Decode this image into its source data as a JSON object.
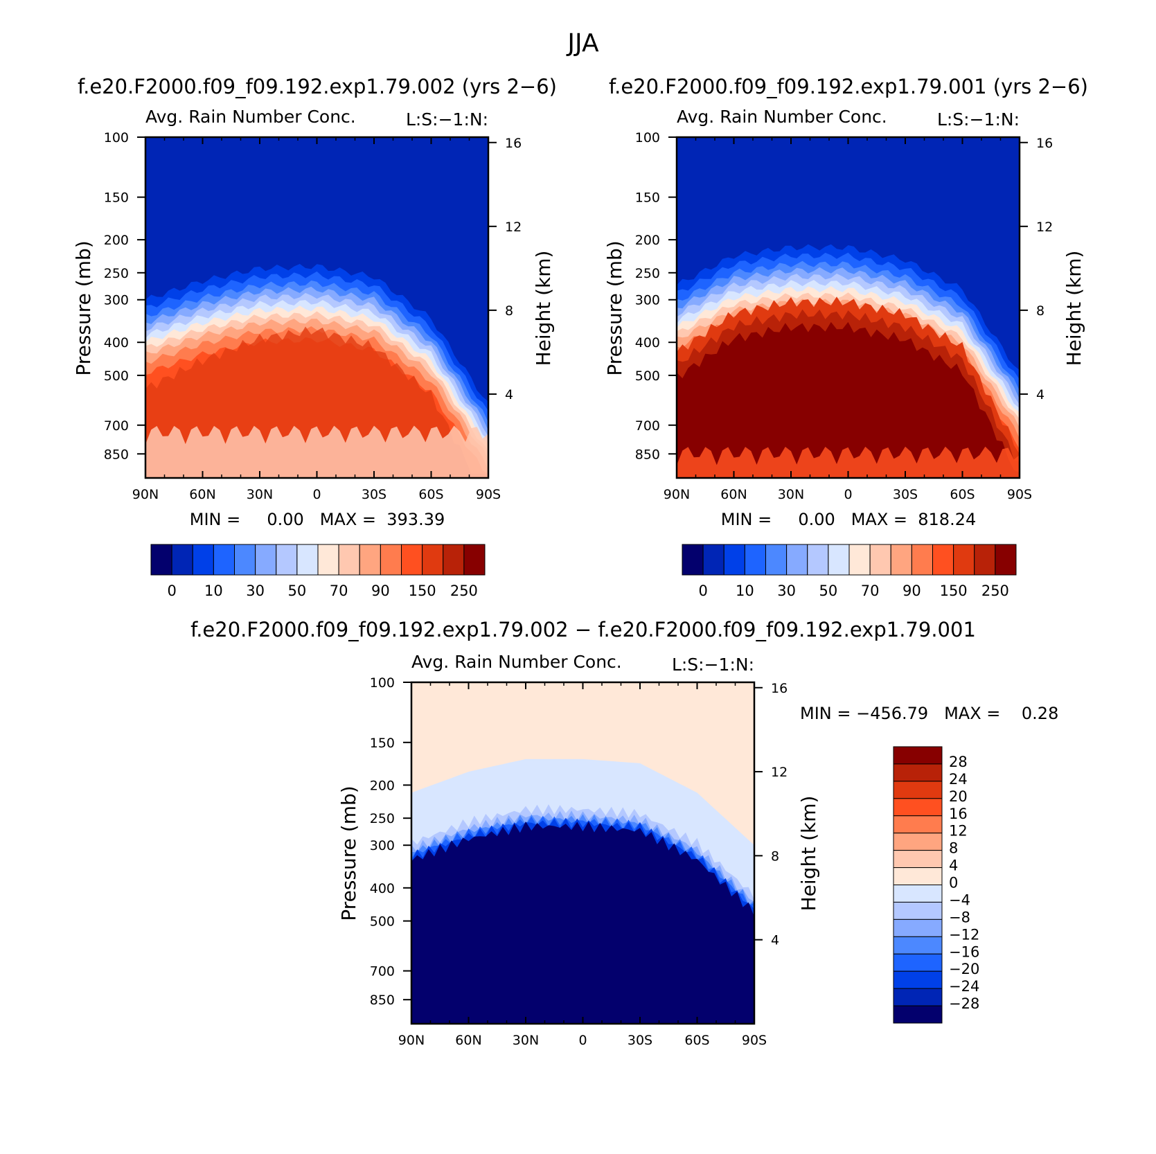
{
  "figure": {
    "title": "JJA"
  },
  "chart_data": [
    {
      "id": "exp002",
      "type": "heatmap",
      "case_title": "f.e20.F2000.f09_f09.192.exp1.79.002 (yrs 2−6)",
      "subtitle_left": "Avg. Rain Number Conc.",
      "subtitle_right": "L:S:−1:N:",
      "ylabel": "Pressure (mb)",
      "y2label": "Height (km)",
      "xticks": [
        "90N",
        "60N",
        "30N",
        "0",
        "30S",
        "60S",
        "90S"
      ],
      "yticks": [
        "100",
        "150",
        "200",
        "250",
        "300",
        "400",
        "500",
        "700",
        "850"
      ],
      "y2ticks": [
        "4",
        "8",
        "12",
        "16"
      ],
      "stats": "MIN =     0.00   MAX =  393.39",
      "min": 0.0,
      "max": 393.39,
      "colorbar_labels": [
        "0",
        "10",
        "30",
        "50",
        "70",
        "90",
        "150",
        "250"
      ],
      "colors": [
        "#03006d",
        "#0025b5",
        "#0040e8",
        "#1e64ff",
        "#4c88ff",
        "#86aaff",
        "#b4c8ff",
        "#d8e6ff",
        "#ffe8d8",
        "#ffc8b0",
        "#ffa580",
        "#ff7c4e",
        "#ff5020",
        "#e03a10",
        "#b82208",
        "#870000"
      ],
      "profile": [
        {
          "lat": "90N",
          "top_km": 8.5,
          "core": 0.45
        },
        {
          "lat": "60N",
          "top_km": 9.4,
          "core": 0.6
        },
        {
          "lat": "30N",
          "top_km": 10.0,
          "core": 0.75
        },
        {
          "lat": "0",
          "top_km": 10.1,
          "core": 0.85
        },
        {
          "lat": "30S",
          "top_km": 9.6,
          "core": 0.75
        },
        {
          "lat": "60S",
          "top_km": 7.6,
          "core": 0.65
        },
        {
          "lat": "90S",
          "top_km": 3.5,
          "core": 0.3
        }
      ]
    },
    {
      "id": "exp001",
      "type": "heatmap",
      "case_title": "f.e20.F2000.f09_f09.192.exp1.79.001 (yrs 2−6)",
      "subtitle_left": "Avg. Rain Number Conc.",
      "subtitle_right": "L:S:−1:N:",
      "ylabel": "Pressure (mb)",
      "y2label": "Height (km)",
      "xticks": [
        "90N",
        "60N",
        "30N",
        "0",
        "30S",
        "60S",
        "90S"
      ],
      "yticks": [
        "100",
        "150",
        "200",
        "250",
        "300",
        "400",
        "500",
        "700",
        "850"
      ],
      "y2ticks": [
        "4",
        "8",
        "12",
        "16"
      ],
      "stats": "MIN =     0.00   MAX =  818.24",
      "min": 0.0,
      "max": 818.24,
      "colorbar_labels": [
        "0",
        "10",
        "30",
        "50",
        "70",
        "90",
        "150",
        "250"
      ],
      "colors": [
        "#03006d",
        "#0025b5",
        "#0040e8",
        "#1e64ff",
        "#4c88ff",
        "#86aaff",
        "#b4c8ff",
        "#d8e6ff",
        "#ffe8d8",
        "#ffc8b0",
        "#ffa580",
        "#ff7c4e",
        "#ff5020",
        "#e03a10",
        "#b82208",
        "#870000"
      ],
      "profile": [
        {
          "lat": "90N",
          "top_km": 9.2,
          "core": 0.8
        },
        {
          "lat": "60N",
          "top_km": 10.6,
          "core": 0.95
        },
        {
          "lat": "30N",
          "top_km": 11.0,
          "core": 1.0
        },
        {
          "lat": "0",
          "top_km": 11.0,
          "core": 1.0
        },
        {
          "lat": "30S",
          "top_km": 10.4,
          "core": 1.0
        },
        {
          "lat": "60S",
          "top_km": 9.0,
          "core": 0.95
        },
        {
          "lat": "90S",
          "top_km": 5.0,
          "core": 0.6
        }
      ]
    },
    {
      "id": "difference",
      "type": "heatmap",
      "case_title": "f.e20.F2000.f09_f09.192.exp1.79.002 − f.e20.F2000.f09_f09.192.exp1.79.001",
      "subtitle_left": "Avg. Rain Number Conc.",
      "subtitle_right": "L:S:−1:N:",
      "ylabel": "Pressure (mb)",
      "y2label": "Height (km)",
      "xticks": [
        "90N",
        "60N",
        "30N",
        "0",
        "30S",
        "60S",
        "90S"
      ],
      "yticks": [
        "100",
        "150",
        "200",
        "250",
        "300",
        "400",
        "500",
        "700",
        "850"
      ],
      "y2ticks": [
        "4",
        "8",
        "12",
        "16"
      ],
      "stats": "MIN = −456.79   MAX =    0.28",
      "min": -456.79,
      "max": 0.28,
      "colorbar_labels": [
        "28",
        "24",
        "20",
        "16",
        "12",
        "8",
        "4",
        "0",
        "−4",
        "−8",
        "−12",
        "−16",
        "−20",
        "−24",
        "−28"
      ],
      "colors_top_to_bottom": [
        "#870000",
        "#b82208",
        "#e03a10",
        "#ff5020",
        "#ff7c4e",
        "#ffa580",
        "#ffc8b0",
        "#ffe8d8",
        "#d8e6ff",
        "#b4c8ff",
        "#86aaff",
        "#4c88ff",
        "#1e64ff",
        "#0040e8",
        "#0025b5",
        "#03006d"
      ],
      "profile": [
        {
          "lat": "90N",
          "top_km": 8.0
        },
        {
          "lat": "60N",
          "top_km": 9.0
        },
        {
          "lat": "30N",
          "top_km": 9.6
        },
        {
          "lat": "0",
          "top_km": 9.6
        },
        {
          "lat": "30S",
          "top_km": 9.4
        },
        {
          "lat": "60S",
          "top_km": 8.0
        },
        {
          "lat": "90S",
          "top_km": 5.5
        }
      ]
    }
  ]
}
